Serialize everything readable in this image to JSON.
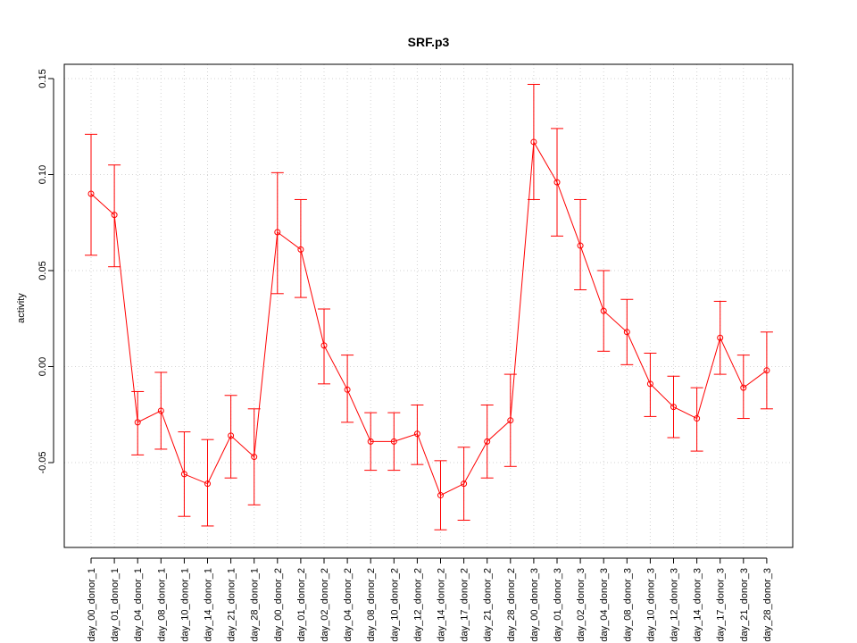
{
  "chart_data": {
    "type": "line",
    "title": "SRF.p3",
    "xlabel": "",
    "ylabel": "activity",
    "ylim": [
      -0.095,
      0.155
    ],
    "yticks": [
      -0.05,
      0.0,
      0.05,
      0.1,
      0.15
    ],
    "ytick_labels": [
      "-0.05",
      "0.00",
      "0.05",
      "0.10",
      "0.15"
    ],
    "grid": true,
    "categories": [
      "day_00_donor_1",
      "day_01_donor_1",
      "day_04_donor_1",
      "day_08_donor_1",
      "day_10_donor_1",
      "day_14_donor_1",
      "day_21_donor_1",
      "day_28_donor_1",
      "day_00_donor_2",
      "day_01_donor_2",
      "day_02_donor_2",
      "day_04_donor_2",
      "day_08_donor_2",
      "day_10_donor_2",
      "day_12_donor_2",
      "day_14_donor_2",
      "day_17_donor_2",
      "day_21_donor_2",
      "day_28_donor_2",
      "day_00_donor_3",
      "day_01_donor_3",
      "day_02_donor_3",
      "day_04_donor_3",
      "day_08_donor_3",
      "day_10_donor_3",
      "day_12_donor_3",
      "day_14_donor_3",
      "day_17_donor_3",
      "day_21_donor_3",
      "day_28_donor_3"
    ],
    "series": [
      {
        "color": "#ff0000",
        "values": [
          0.09,
          0.079,
          -0.029,
          -0.023,
          -0.056,
          -0.061,
          -0.036,
          -0.047,
          0.07,
          0.061,
          0.011,
          -0.012,
          -0.039,
          -0.039,
          -0.035,
          -0.067,
          -0.061,
          -0.039,
          -0.028,
          0.117,
          0.096,
          0.063,
          0.029,
          0.018,
          -0.009,
          -0.021,
          -0.027,
          0.015,
          -0.011,
          -0.002
        ],
        "lower": [
          0.058,
          0.052,
          -0.046,
          -0.043,
          -0.078,
          -0.083,
          -0.058,
          -0.072,
          0.038,
          0.036,
          -0.009,
          -0.029,
          -0.054,
          -0.054,
          -0.051,
          -0.085,
          -0.08,
          -0.058,
          -0.052,
          0.087,
          0.068,
          0.04,
          0.008,
          0.001,
          -0.026,
          -0.037,
          -0.044,
          -0.004,
          -0.027,
          -0.022
        ],
        "upper": [
          0.121,
          0.105,
          -0.013,
          -0.003,
          -0.034,
          -0.038,
          -0.015,
          -0.022,
          0.101,
          0.087,
          0.03,
          0.006,
          -0.024,
          -0.024,
          -0.02,
          -0.049,
          -0.042,
          -0.02,
          -0.004,
          0.147,
          0.124,
          0.087,
          0.05,
          0.035,
          0.007,
          -0.005,
          -0.011,
          0.034,
          0.006,
          0.018
        ]
      }
    ]
  }
}
